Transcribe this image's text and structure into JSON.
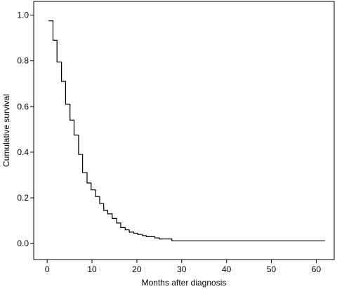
{
  "chart_data": {
    "type": "line",
    "step": true,
    "xlabel": "Months after diagnosis",
    "ylabel": "Cumulative survival",
    "xlim": [
      -3,
      64
    ],
    "ylim": [
      -0.07,
      1.06
    ],
    "xticks": [
      0,
      10,
      20,
      30,
      40,
      50,
      60
    ],
    "xtick_labels": [
      "0",
      "10",
      "20",
      "30",
      "40",
      "50",
      "60"
    ],
    "yticks": [
      0.0,
      0.2,
      0.4,
      0.6,
      0.8,
      1.0
    ],
    "ytick_labels": [
      "0.0",
      "0.2",
      "0.4",
      "0.6",
      "0.8",
      "1.0"
    ],
    "series": [
      {
        "x": [
          0.3,
          1.3,
          2.2,
          3.2,
          4.1,
          5.1,
          6.0,
          7.0,
          7.9,
          8.9,
          9.8,
          10.8,
          11.7,
          12.6,
          13.5,
          14.5,
          15.5,
          16.4,
          17.4,
          18.3,
          19.3,
          20.2,
          21.2,
          22.1,
          23.1,
          24.0,
          25.0,
          25.9,
          26.8,
          27.8,
          62.0
        ],
        "y": [
          0.975,
          0.89,
          0.795,
          0.71,
          0.61,
          0.54,
          0.475,
          0.39,
          0.31,
          0.265,
          0.235,
          0.205,
          0.175,
          0.145,
          0.13,
          0.11,
          0.09,
          0.07,
          0.06,
          0.05,
          0.045,
          0.04,
          0.035,
          0.03,
          0.03,
          0.025,
          0.02,
          0.02,
          0.02,
          0.012,
          0.012
        ]
      }
    ]
  }
}
